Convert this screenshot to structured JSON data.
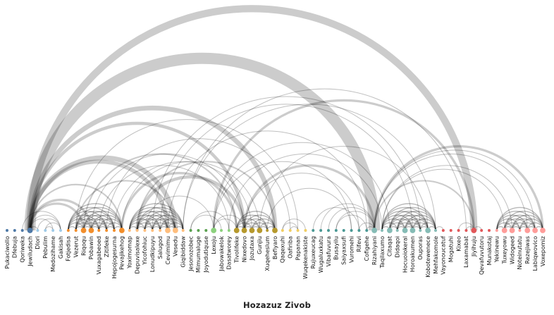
{
  "title": "Hozazuz Zivob",
  "groups": [
    {
      "color": "#4e79a7",
      "nodes": [
        "Pukaciwollo",
        "Dfebuja",
        "Qoriweka",
        "Jewiludach"
      ]
    },
    {
      "color": "#a0cbe8",
      "nodes": [
        "Dlori",
        "Pebulim",
        "Medozihame",
        "Gakisah"
      ]
    },
    {
      "color": "#f28e2b",
      "nodes": [
        "Fotjedisa",
        "Vezerut",
        "Riqoqu",
        "Pobawin",
        "Vuxagabeoed",
        "Zitifeke",
        "Hepojogesurna",
        "Pevajikehog"
      ]
    },
    {
      "color": "#ffbe7d",
      "nodes": [
        "Yoximomap",
        "Depuvisalexe",
        "Yicofohiuc",
        "Lonudkipuyu",
        "Salugod",
        "Cevimimu",
        "Vesedu",
        "Giqibiddaw"
      ]
    },
    {
      "color": "#59a14f",
      "nodes": [
        "Jesonozobec",
        "Mimumaluge",
        "Joyodutiquse"
      ]
    },
    {
      "color": "#8cd17d",
      "nodes": [
        "Lexoju",
        "Jabowakelok",
        "Dasatworey"
      ]
    },
    {
      "color": "#b6992d",
      "nodes": [
        "Tivolifeke",
        "Nixedovo",
        "Jozutaxa",
        "Gunjiu",
        "Xuqeheslum",
        "Befiyaro"
      ]
    },
    {
      "color": "#f1ce63",
      "nodes": [
        "Qaqexuhi",
        "Oafiriba",
        "Papanan",
        "Wuqekenakiste"
      ]
    },
    {
      "color": "#499894",
      "nodes": [
        "Rujuxeucag",
        "Wugaluxkatu",
        "Vibafuvura",
        "Busayilu",
        "Saiyaxsufi",
        "Vuromehi",
        "Rifevi",
        "Cofigehe"
      ]
    },
    {
      "color": "#86bcb6",
      "nodes": [
        "Rizahiyani",
        "Taqilaxumo",
        "Citaqat",
        "Didaqoi",
        "Hocuoiokeral",
        "Horoakumen",
        "Ouporas",
        "Kobotewenece",
        "Mehfakomole"
      ]
    },
    {
      "color": "#e15759",
      "nodes": [
        "Vayonoucatuf",
        "Mogatuhi",
        "Kixeo",
        "Laxamabat",
        "Jiyihuju",
        "Qevafuvutoru",
        "Munakotaj"
      ]
    },
    {
      "color": "#ff9d9a",
      "nodes": [
        "Yekinewu",
        "Tuxeyowu",
        "Widogeed",
        "Noteinutatu",
        "Rezejiwas",
        "Labiqwovico",
        "Voxepomiz"
      ]
    }
  ],
  "links": [
    {
      "s": "Jewiludach",
      "t": "Riqoqu",
      "w": 3
    },
    {
      "s": "Jewiludach",
      "t": "Pobawin",
      "w": 3
    },
    {
      "s": "Jewiludach",
      "t": "Pevajikehog",
      "w": 2
    },
    {
      "s": "Jewiludach",
      "t": "Cevimimu",
      "w": 5
    },
    {
      "s": "Jewiludach",
      "t": "Vesedu",
      "w": 6
    },
    {
      "s": "Jewiludach",
      "t": "Nixedovo",
      "w": 4
    },
    {
      "s": "Jewiludach",
      "t": "Befiyaro",
      "w": 6
    },
    {
      "s": "Jewiludach",
      "t": "Rizahiyani",
      "w": 14
    },
    {
      "s": "Jewiludach",
      "t": "Jiyihuju",
      "w": 9
    },
    {
      "s": "Jewiludach",
      "t": "Dlori",
      "w": 1
    },
    {
      "s": "Jewiludach",
      "t": "Medozihame",
      "w": 1
    },
    {
      "s": "Jewiludach",
      "t": "Gakisah",
      "w": 1
    },
    {
      "s": "Qoriweka",
      "t": "Gakisah",
      "w": 1
    },
    {
      "s": "Pebulim",
      "t": "Medozihame",
      "w": 1
    },
    {
      "s": "Pebulim",
      "t": "Gakisah",
      "w": 1
    },
    {
      "s": "Dlori",
      "t": "Gakisah",
      "w": 1
    },
    {
      "s": "Vezerut",
      "t": "Vesedu",
      "w": 2
    },
    {
      "s": "Vezerut",
      "t": "Papanan",
      "w": 1
    },
    {
      "s": "Riqoqu",
      "t": "Tivolifeke",
      "w": 2
    },
    {
      "s": "Pobawin",
      "t": "Nixedovo",
      "w": 1
    },
    {
      "s": "Vuxagabeoed",
      "t": "Dasatworey",
      "w": 1
    },
    {
      "s": "Zitifeke",
      "t": "Oafiriba",
      "w": 1
    },
    {
      "s": "Hepojogesurna",
      "t": "Jozutaxa",
      "w": 1
    },
    {
      "s": "Pevajikehog",
      "t": "Tivolifeke",
      "w": 3
    },
    {
      "s": "Pevajikehog",
      "t": "Gunjiu",
      "w": 1
    },
    {
      "s": "Yicofohiuc",
      "t": "Lexoju",
      "w": 1
    },
    {
      "s": "Depuvisalexe",
      "t": "Nixedovo",
      "w": 4
    },
    {
      "s": "Depuvisalexe",
      "t": "Befiyaro",
      "w": 2
    },
    {
      "s": "Lonudkipuyu",
      "t": "Ouporas",
      "w": 1
    },
    {
      "s": "Salugod",
      "t": "Horoakumen",
      "w": 1
    },
    {
      "s": "Cevimimu",
      "t": "Cofigehe",
      "w": 1
    },
    {
      "s": "Giqibiddaw",
      "t": "Laxamabat",
      "w": 1
    },
    {
      "s": "Giqibiddaw",
      "t": "Mehfakomole",
      "w": 1
    },
    {
      "s": "Jesonozobec",
      "t": "Dasatworey",
      "w": 1
    },
    {
      "s": "Jesonozobec",
      "t": "Jabowakelok",
      "w": 1
    },
    {
      "s": "Lexoju",
      "t": "Vuromehi",
      "w": 1
    },
    {
      "s": "Lexoju",
      "t": "Citaqat",
      "w": 1
    },
    {
      "s": "Lexoju",
      "t": "Jiyihuju",
      "w": 3
    },
    {
      "s": "Lexoju",
      "t": "Tivolifeke",
      "w": 1
    },
    {
      "s": "Lexoju",
      "t": "Nixedovo",
      "w": 1
    },
    {
      "s": "Dasatworey",
      "t": "Taqilaxumo",
      "w": 1
    },
    {
      "s": "Nixedovo",
      "t": "Rizahiyani",
      "w": 3
    },
    {
      "s": "Nixedovo",
      "t": "Rifevi",
      "w": 1
    },
    {
      "s": "Gunjiu",
      "t": "Kobotewenece",
      "w": 1
    },
    {
      "s": "Xuqeheslum",
      "t": "Vuromehi",
      "w": 1
    },
    {
      "s": "Qaqexuhi",
      "t": "Papanan",
      "w": 1
    },
    {
      "s": "Qaqexuhi",
      "t": "Wuqekenakiste",
      "w": 1
    },
    {
      "s": "Oafiriba",
      "t": "Papanan",
      "w": 1
    },
    {
      "s": "Wugaluxkatu",
      "t": "Rizahiyani",
      "w": 1
    },
    {
      "s": "Vibafuvura",
      "t": "Rizahiyani",
      "w": 1
    },
    {
      "s": "Busayilu",
      "t": "Rizahiyani",
      "w": 1
    },
    {
      "s": "Busayilu",
      "t": "Cofigehe",
      "w": 1
    },
    {
      "s": "Rujuxeucag",
      "t": "Rifevi",
      "w": 1
    },
    {
      "s": "Rifevi",
      "t": "Rizahiyani",
      "w": 1
    },
    {
      "s": "Cofigehe",
      "t": "Rizahiyani",
      "w": 1
    },
    {
      "s": "Rizahiyani",
      "t": "Jiyihuju",
      "w": 2
    },
    {
      "s": "Rizahiyani",
      "t": "Voxepomiz",
      "w": 3
    },
    {
      "s": "Rizahiyani",
      "t": "Labiqwovico",
      "w": 1
    },
    {
      "s": "Rizahiyani",
      "t": "Rezejiwas",
      "w": 1
    },
    {
      "s": "Taqilaxumo",
      "t": "Tuxeyowu",
      "w": 1
    },
    {
      "s": "Taqilaxumo",
      "t": "Widogeed",
      "w": 1
    },
    {
      "s": "Mehfakomole",
      "t": "Vayonoucatuf",
      "w": 1
    },
    {
      "s": "Laxamabat",
      "t": "Jiyihuju",
      "w": 1
    },
    {
      "s": "Jiyihuju",
      "t": "Qevafuvutoru",
      "w": 1
    },
    {
      "s": "Kixeo",
      "t": "Jiyihuju",
      "w": 1
    }
  ],
  "dense_groups": [
    {
      "nodes": [
        "Fotjedisa",
        "Vezerut",
        "Riqoqu",
        "Pobawin",
        "Vuxagabeoed",
        "Zitifeke",
        "Hepojogesurna",
        "Pevajikehog"
      ]
    },
    {
      "nodes": [
        "Yoximomap",
        "Depuvisalexe",
        "Yicofohiuc",
        "Lonudkipuyu",
        "Salugod",
        "Cevimimu",
        "Vesedu",
        "Giqibiddaw"
      ]
    },
    {
      "nodes": [
        "Tivolifeke",
        "Nixedovo",
        "Jozutaxa",
        "Gunjiu",
        "Xuqeheslum",
        "Befiyaro"
      ]
    },
    {
      "nodes": [
        "Taqilaxumo",
        "Citaqat",
        "Didaqoi",
        "Hocuoiokeral",
        "Horoakumen",
        "Ouporas",
        "Kobotewenece",
        "Mehfakomole"
      ]
    },
    {
      "nodes": [
        "Yekinewu",
        "Tuxeyowu",
        "Widogeed",
        "Noteinutatu",
        "Rezejiwas",
        "Labiqwovico",
        "Voxepomiz"
      ]
    }
  ],
  "degree_hint": {
    "Jewiludach": 5,
    "Rizahiyani": 6,
    "Jiyihuju": 6,
    "Nixedovo": 5,
    "Pevajikehog": 5,
    "Riqoqu": 5,
    "Pobawin": 5,
    "Vesedu": 5,
    "Cevimimu": 5,
    "Befiyaro": 5,
    "Gunjiu": 5,
    "Tivolifeke": 5,
    "Lexoju": 4,
    "Jozutaxa": 5,
    "Horoakumen": 5,
    "Hocuoiokeral": 5,
    "Kobotewenece": 5,
    "Citaqat": 4,
    "Voxepomiz": 4,
    "Labiqwovico": 4,
    "Rezejiwas": 4,
    "Widogeed": 4,
    "Tuxeyowu": 4
  }
}
